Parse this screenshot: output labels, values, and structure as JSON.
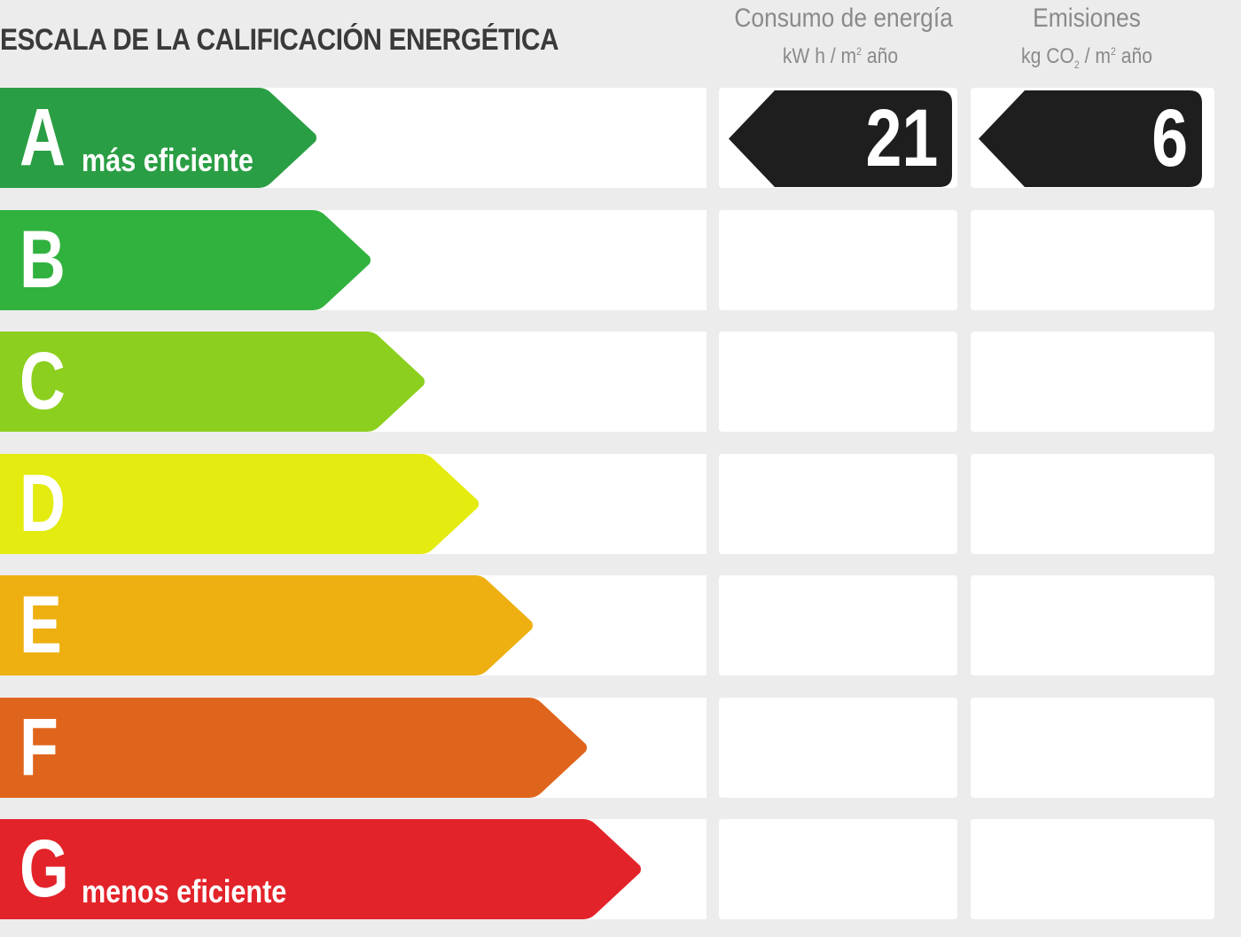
{
  "title": "ESCALA DE LA CALIFICACIÓN ENERGÉTICA",
  "columns": {
    "energy": {
      "title": "Consumo de energía",
      "unit_pre": "kW h / m",
      "unit_sup": "2",
      "unit_post": " año"
    },
    "emissions": {
      "title": "Emisiones",
      "unit_pre": "kg CO",
      "unit_sub": "2",
      "unit_mid": " / m",
      "unit_sup": "2",
      "unit_post": " año"
    }
  },
  "ratings": [
    {
      "letter": "A",
      "label": "más eficiente",
      "color": "#2a9e44"
    },
    {
      "letter": "B",
      "label": "",
      "color": "#31b23e"
    },
    {
      "letter": "C",
      "label": "",
      "color": "#8ccf1f"
    },
    {
      "letter": "D",
      "label": "",
      "color": "#e3eb10"
    },
    {
      "letter": "E",
      "label": "",
      "color": "#eeb010"
    },
    {
      "letter": "F",
      "label": "",
      "color": "#e0651c"
    },
    {
      "letter": "G",
      "label": "menos eficiente",
      "color": "#e3232a"
    }
  ],
  "result": {
    "rating": "A",
    "energy_value": "21",
    "emissions_value": "6",
    "badge_color": "#1e1e1e"
  }
}
